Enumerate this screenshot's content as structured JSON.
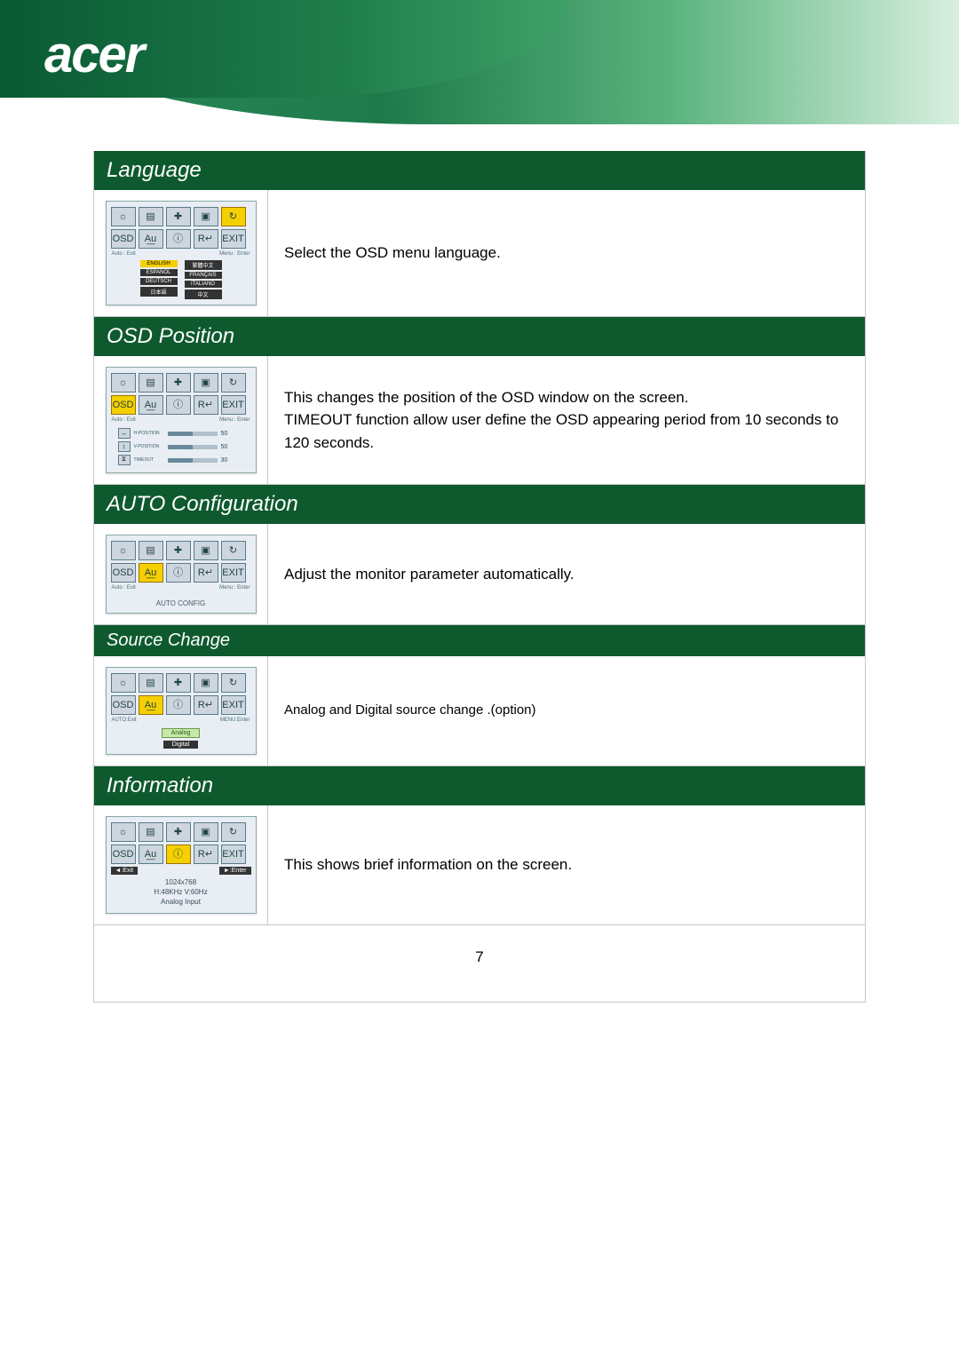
{
  "brand": "acer",
  "pageNumber": "7",
  "colors": {
    "barGreen": "#0e5a2e",
    "highlightYellow": "#f5d000"
  },
  "osdCommon": {
    "metaLeft": "Auto : Exit",
    "metaRight": "Menu : Enter",
    "iconsRow1": [
      "☼",
      "▤",
      "✚",
      "▣",
      "↻"
    ],
    "iconsRow2": [
      "OSD",
      "A͟u",
      "ⓘ",
      "R↵",
      "EXIT"
    ]
  },
  "sections": [
    {
      "title": "Language",
      "description": "Select the OSD menu language.",
      "highlightIndex": 4,
      "languages": {
        "col1": [
          "ENGLISH",
          "ESPAÑOL",
          "DEUTSCH",
          "日本語"
        ],
        "col2": [
          "繁體中文",
          "FRANÇAIS",
          "ITALIANO",
          "中文"
        ],
        "selected": "ENGLISH"
      }
    },
    {
      "title": "OSD Position",
      "description": "This changes the position of the OSD window on the screen.\nTIMEOUT function allow user define the OSD appearing period from 10 seconds to 120 seconds.",
      "highlightIndex": 5,
      "sliders": [
        {
          "icon": "↔",
          "label": "H-POSITION",
          "value": "50"
        },
        {
          "icon": "↕",
          "label": "V-POSITION",
          "value": "50"
        },
        {
          "icon": "⧖",
          "label": "TIMEOUT",
          "value": "30"
        }
      ]
    },
    {
      "title": "AUTO Configuration",
      "description": "Adjust the monitor parameter automatically.",
      "highlightIndex": 6,
      "centerLabel": "AUTO CONFIG"
    },
    {
      "title": "Source Change",
      "small": true,
      "description": "Analog and Digital source change .(option)",
      "highlightIndex": 6,
      "metaLeftAlt": "AUTO:Exit",
      "metaRightAlt": "MENU:Enter",
      "sources": [
        {
          "label": "Analog",
          "selected": true
        },
        {
          "label": "Digital",
          "selected": false
        }
      ]
    },
    {
      "title": "Information",
      "description": "This shows brief information on the screen.",
      "highlightIndex": 7,
      "badges": {
        "left": "◄:Exit",
        "right": "►:Enter"
      },
      "infoLines": [
        "1024x768",
        "H:48KHz  V:60Hz",
        "Analog Input"
      ]
    }
  ]
}
